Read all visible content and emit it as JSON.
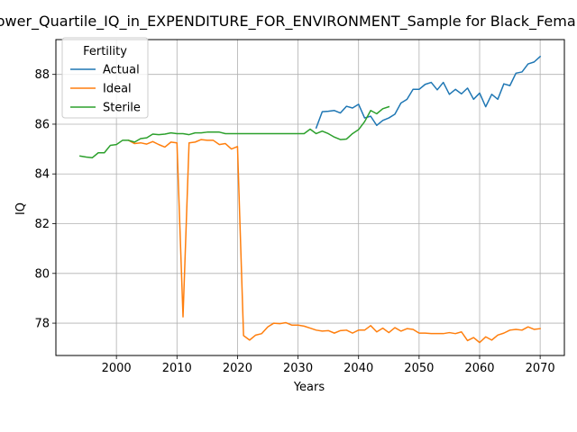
{
  "chart_data": {
    "type": "line",
    "title": "Lower_Quartile_IQ_in_EXPENDITURE_FOR_ENVIRONMENT_Sample for Black_Female",
    "xlabel": "Years",
    "ylabel": "IQ",
    "xlim": [
      1990,
      2074
    ],
    "ylim": [
      76.7,
      89.4
    ],
    "xticks": [
      2000,
      2010,
      2020,
      2030,
      2040,
      2050,
      2060,
      2070
    ],
    "yticks": [
      78,
      80,
      82,
      84,
      86,
      88
    ],
    "grid": true,
    "legend": {
      "title": "Fertility",
      "placement": "top-left",
      "entries": [
        "Actual",
        "Ideal",
        "Sterile"
      ]
    },
    "series": [
      {
        "name": "Actual",
        "color": "#1f77b4",
        "x": [
          2033,
          2034,
          2035,
          2036,
          2037,
          2038,
          2039,
          2040,
          2041,
          2042,
          2043,
          2044,
          2045,
          2046,
          2047,
          2048,
          2049,
          2050,
          2051,
          2052,
          2053,
          2054,
          2055,
          2056,
          2057,
          2058,
          2059,
          2060,
          2061,
          2062,
          2063,
          2064,
          2065,
          2066,
          2067,
          2068,
          2069,
          2070
        ],
        "values": [
          85.85,
          86.5,
          86.52,
          86.55,
          86.45,
          86.72,
          86.65,
          86.8,
          86.25,
          86.32,
          85.95,
          86.15,
          86.25,
          86.4,
          86.85,
          87.0,
          87.4,
          87.4,
          87.6,
          87.68,
          87.38,
          87.68,
          87.2,
          87.4,
          87.22,
          87.45,
          87.0,
          87.25,
          86.7,
          87.2,
          87.0,
          87.62,
          87.55,
          88.05,
          88.1,
          88.42,
          88.5,
          88.72
        ]
      },
      {
        "name": "Ideal",
        "color": "#ff7f0e",
        "x": [
          2002,
          2003,
          2004,
          2005,
          2006,
          2007,
          2008,
          2009,
          2010,
          2011,
          2012,
          2013,
          2014,
          2015,
          2016,
          2017,
          2018,
          2019,
          2020,
          2021,
          2022,
          2023,
          2024,
          2025,
          2026,
          2027,
          2028,
          2029,
          2030,
          2031,
          2032,
          2033,
          2034,
          2035,
          2036,
          2037,
          2038,
          2039,
          2040,
          2041,
          2042,
          2043,
          2044,
          2045,
          2046,
          2047,
          2048,
          2049,
          2050,
          2051,
          2052,
          2053,
          2054,
          2055,
          2056,
          2057,
          2058,
          2059,
          2060,
          2061,
          2062,
          2063,
          2064,
          2065,
          2066,
          2067,
          2068,
          2069,
          2070
        ],
        "values": [
          85.35,
          85.22,
          85.25,
          85.2,
          85.3,
          85.18,
          85.08,
          85.28,
          85.25,
          78.25,
          85.25,
          85.28,
          85.38,
          85.35,
          85.35,
          85.18,
          85.22,
          85.0,
          85.1,
          77.5,
          77.32,
          77.52,
          77.58,
          77.85,
          78.0,
          77.98,
          78.02,
          77.92,
          77.92,
          77.88,
          77.8,
          77.72,
          77.68,
          77.7,
          77.6,
          77.7,
          77.72,
          77.6,
          77.72,
          77.72,
          77.9,
          77.65,
          77.8,
          77.62,
          77.82,
          77.68,
          77.78,
          77.75,
          77.6,
          77.6,
          77.58,
          77.58,
          77.58,
          77.62,
          77.58,
          77.65,
          77.3,
          77.42,
          77.22,
          77.45,
          77.32,
          77.52,
          77.6,
          77.72,
          77.75,
          77.72,
          77.85,
          77.75,
          77.78
        ]
      },
      {
        "name": "Sterile",
        "color": "#2ca02c",
        "x": [
          1994,
          1995,
          1996,
          1997,
          1998,
          1999,
          2000,
          2001,
          2002,
          2003,
          2004,
          2005,
          2006,
          2007,
          2008,
          2009,
          2010,
          2011,
          2012,
          2013,
          2014,
          2015,
          2016,
          2017,
          2018,
          2019,
          2020,
          2021,
          2022,
          2023,
          2024,
          2025,
          2026,
          2027,
          2028,
          2029,
          2030,
          2031,
          2032,
          2033,
          2034,
          2035,
          2036,
          2037,
          2038,
          2039,
          2040,
          2041,
          2042,
          2043,
          2044,
          2045
        ],
        "values": [
          84.72,
          84.68,
          84.65,
          84.85,
          84.85,
          85.15,
          85.18,
          85.35,
          85.35,
          85.28,
          85.42,
          85.45,
          85.6,
          85.58,
          85.6,
          85.65,
          85.62,
          85.62,
          85.58,
          85.65,
          85.65,
          85.68,
          85.68,
          85.68,
          85.62,
          85.62,
          85.62,
          85.62,
          85.62,
          85.62,
          85.62,
          85.62,
          85.62,
          85.62,
          85.62,
          85.62,
          85.62,
          85.62,
          85.8,
          85.62,
          85.72,
          85.62,
          85.48,
          85.38,
          85.4,
          85.62,
          85.78,
          86.1,
          86.55,
          86.42,
          86.62,
          86.7
        ]
      }
    ]
  }
}
